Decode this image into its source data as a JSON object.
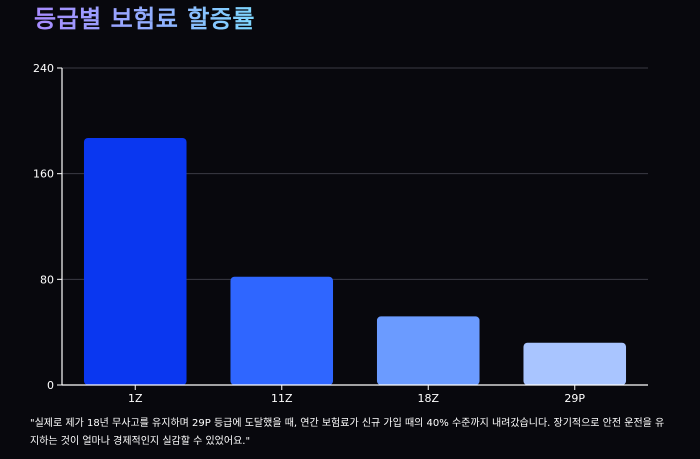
{
  "chart_data": {
    "type": "bar",
    "title": "등급별 보험료 할증률",
    "categories": [
      "1Z",
      "11Z",
      "18Z",
      "29P"
    ],
    "values": [
      187,
      82,
      52,
      32
    ],
    "ylim": [
      0,
      240
    ],
    "yticks": [
      0,
      80,
      160,
      240
    ],
    "xlabel": "",
    "ylabel": "",
    "grid": true,
    "colors": [
      "#0a37f0",
      "#2f66ff",
      "#6b9bff",
      "#a9c5ff"
    ]
  },
  "caption": "\"실제로 제가 18년 무사고를 유지하며 29P 등급에 도달했을 때, 연간 보험료가 신규 가입 때의 40% 수준까지 내려갔습니다. 장기적으로 안전 운전을 유지하는 것이 얼마나 경제적인지 실감할 수 있었어요.\""
}
